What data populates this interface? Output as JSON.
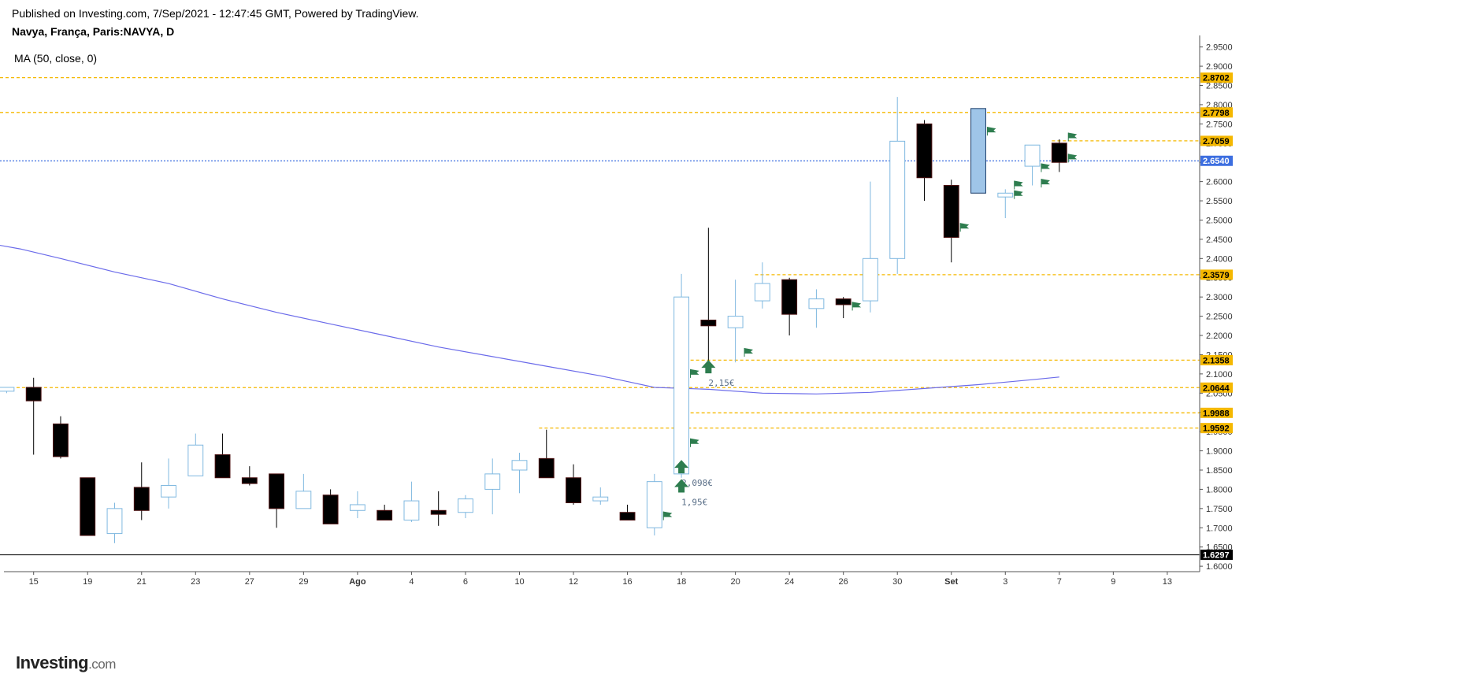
{
  "header": {
    "published": "Published on Investing.com, 7/Sep/2021 - 12:47:45 GMT, Powered by TradingView.",
    "symbol": "Navya, França, Paris:NAVYA, D",
    "indicator": "MA (50, close, 0)"
  },
  "branding": {
    "logo_main": "Investing",
    "logo_suffix": ".com"
  },
  "chart_data": {
    "type": "candlestick",
    "y_axis": {
      "position": "right",
      "range": [
        1.59,
        2.98
      ],
      "ticks": [
        "1.6000",
        "1.6500",
        "1.7000",
        "1.7500",
        "1.8000",
        "1.8500",
        "1.9000",
        "1.9500",
        "2.0000",
        "2.0500",
        "2.1000",
        "2.1500",
        "2.2000",
        "2.2500",
        "2.3000",
        "2.3500",
        "2.4000",
        "2.4500",
        "2.5000",
        "2.5500",
        "2.6000",
        "2.6500",
        "2.7000",
        "2.7500",
        "2.8000",
        "2.8500",
        "2.9000",
        "2.9500"
      ]
    },
    "x_axis": {
      "range": [
        -1.1,
        43.2
      ],
      "labels": [
        {
          "text": "15",
          "x": 0,
          "bold": false
        },
        {
          "text": "19",
          "x": 2,
          "bold": false
        },
        {
          "text": "21",
          "x": 4,
          "bold": false
        },
        {
          "text": "23",
          "x": 6,
          "bold": false
        },
        {
          "text": "27",
          "x": 8,
          "bold": false
        },
        {
          "text": "29",
          "x": 10,
          "bold": false
        },
        {
          "text": "Ago",
          "x": 12,
          "bold": true
        },
        {
          "text": "4",
          "x": 14,
          "bold": false
        },
        {
          "text": "6",
          "x": 16,
          "bold": false
        },
        {
          "text": "10",
          "x": 18,
          "bold": false
        },
        {
          "text": "12",
          "x": 20,
          "bold": false
        },
        {
          "text": "16",
          "x": 22,
          "bold": false
        },
        {
          "text": "18",
          "x": 24,
          "bold": false
        },
        {
          "text": "20",
          "x": 26,
          "bold": false
        },
        {
          "text": "24",
          "x": 28,
          "bold": false
        },
        {
          "text": "26",
          "x": 30,
          "bold": false
        },
        {
          "text": "30",
          "x": 32,
          "bold": false
        },
        {
          "text": "Set",
          "x": 34,
          "bold": true
        },
        {
          "text": "3",
          "x": 36,
          "bold": false
        },
        {
          "text": "7",
          "x": 38,
          "bold": false
        },
        {
          "text": "9",
          "x": 40,
          "bold": false
        },
        {
          "text": "13",
          "x": 42,
          "bold": false
        }
      ]
    },
    "candles": [
      {
        "x": -1,
        "o": 2.055,
        "h": 2.065,
        "l": 2.05,
        "c": 2.065
      },
      {
        "x": 0,
        "o": 2.065,
        "h": 2.09,
        "l": 1.89,
        "c": 2.03
      },
      {
        "x": 1,
        "o": 1.97,
        "h": 1.99,
        "l": 1.88,
        "c": 1.885
      },
      {
        "x": 2,
        "o": 1.83,
        "h": 1.83,
        "l": 1.68,
        "c": 1.68
      },
      {
        "x": 3,
        "o": 1.685,
        "h": 1.765,
        "l": 1.66,
        "c": 1.75
      },
      {
        "x": 4,
        "o": 1.805,
        "h": 1.87,
        "l": 1.72,
        "c": 1.745
      },
      {
        "x": 5,
        "o": 1.78,
        "h": 1.88,
        "l": 1.75,
        "c": 1.81
      },
      {
        "x": 6,
        "o": 1.835,
        "h": 1.945,
        "l": 1.835,
        "c": 1.915
      },
      {
        "x": 7,
        "o": 1.89,
        "h": 1.945,
        "l": 1.83,
        "c": 1.83
      },
      {
        "x": 8,
        "o": 1.83,
        "h": 1.86,
        "l": 1.81,
        "c": 1.815
      },
      {
        "x": 9,
        "o": 1.84,
        "h": 1.84,
        "l": 1.7,
        "c": 1.75
      },
      {
        "x": 10,
        "o": 1.75,
        "h": 1.84,
        "l": 1.75,
        "c": 1.795
      },
      {
        "x": 11,
        "o": 1.785,
        "h": 1.8,
        "l": 1.71,
        "c": 1.71
      },
      {
        "x": 12,
        "o": 1.745,
        "h": 1.795,
        "l": 1.725,
        "c": 1.76
      },
      {
        "x": 13,
        "o": 1.745,
        "h": 1.76,
        "l": 1.72,
        "c": 1.72
      },
      {
        "x": 14,
        "o": 1.72,
        "h": 1.82,
        "l": 1.715,
        "c": 1.77
      },
      {
        "x": 15,
        "o": 1.745,
        "h": 1.795,
        "l": 1.705,
        "c": 1.735
      },
      {
        "x": 16,
        "o": 1.74,
        "h": 1.785,
        "l": 1.725,
        "c": 1.775
      },
      {
        "x": 17,
        "o": 1.8,
        "h": 1.88,
        "l": 1.735,
        "c": 1.84
      },
      {
        "x": 18,
        "o": 1.85,
        "h": 1.895,
        "l": 1.79,
        "c": 1.875
      },
      {
        "x": 19,
        "o": 1.88,
        "h": 1.955,
        "l": 1.83,
        "c": 1.83
      },
      {
        "x": 20,
        "o": 1.83,
        "h": 1.865,
        "l": 1.76,
        "c": 1.765
      },
      {
        "x": 21,
        "o": 1.77,
        "h": 1.805,
        "l": 1.76,
        "c": 1.78
      },
      {
        "x": 22,
        "o": 1.74,
        "h": 1.76,
        "l": 1.72,
        "c": 1.72
      },
      {
        "x": 23,
        "o": 1.7,
        "h": 1.84,
        "l": 1.68,
        "c": 1.82
      },
      {
        "x": 24,
        "o": 1.84,
        "h": 2.36,
        "l": 1.83,
        "c": 2.3
      },
      {
        "x": 25,
        "o": 2.24,
        "h": 2.48,
        "l": 2.13,
        "c": 2.225
      },
      {
        "x": 26,
        "o": 2.22,
        "h": 2.345,
        "l": 2.13,
        "c": 2.25
      },
      {
        "x": 27,
        "o": 2.29,
        "h": 2.39,
        "l": 2.27,
        "c": 2.335
      },
      {
        "x": 28,
        "o": 2.345,
        "h": 2.35,
        "l": 2.2,
        "c": 2.255
      },
      {
        "x": 29,
        "o": 2.27,
        "h": 2.32,
        "l": 2.22,
        "c": 2.295
      },
      {
        "x": 30,
        "o": 2.295,
        "h": 2.3,
        "l": 2.245,
        "c": 2.28
      },
      {
        "x": 31,
        "o": 2.29,
        "h": 2.6,
        "l": 2.26,
        "c": 2.4
      },
      {
        "x": 32,
        "o": 2.4,
        "h": 2.82,
        "l": 2.36,
        "c": 2.705
      },
      {
        "x": 33,
        "o": 2.75,
        "h": 2.76,
        "l": 2.55,
        "c": 2.61
      },
      {
        "x": 34,
        "o": 2.59,
        "h": 2.605,
        "l": 2.39,
        "c": 2.455
      },
      {
        "x": 35,
        "o": 2.57,
        "h": 2.79,
        "l": 2.57,
        "c": 2.79,
        "fill": "#9fc5e8"
      },
      {
        "x": 36,
        "o": 2.56,
        "h": 2.58,
        "l": 2.505,
        "c": 2.57
      },
      {
        "x": 37,
        "o": 2.64,
        "h": 2.695,
        "l": 2.59,
        "c": 2.695
      },
      {
        "x": 38,
        "o": 2.7,
        "h": 2.71,
        "l": 2.625,
        "c": 2.65
      }
    ],
    "ma_series": {
      "name": "MA (50, close, 0)",
      "color": "#6b6bea",
      "points": [
        [
          -1.7,
          2.44
        ],
        [
          -0.5,
          2.425
        ],
        [
          1,
          2.4
        ],
        [
          3,
          2.365
        ],
        [
          5,
          2.335
        ],
        [
          7,
          2.295
        ],
        [
          9,
          2.26
        ],
        [
          11,
          2.23
        ],
        [
          13,
          2.2
        ],
        [
          15,
          2.17
        ],
        [
          17,
          2.145
        ],
        [
          19,
          2.12
        ],
        [
          21,
          2.095
        ],
        [
          22,
          2.08
        ],
        [
          23,
          2.065
        ],
        [
          25,
          2.06
        ],
        [
          27,
          2.05
        ],
        [
          29,
          2.048
        ],
        [
          31,
          2.052
        ],
        [
          33,
          2.062
        ],
        [
          35,
          2.072
        ],
        [
          37,
          2.085
        ],
        [
          38,
          2.092
        ]
      ]
    },
    "horizontal_lines": [
      {
        "value": 2.8702,
        "label": "2.8702",
        "x_start": -2,
        "color": "#f5b800",
        "badge_bg": "#f5b800",
        "badge_fg": "#000000"
      },
      {
        "value": 2.7798,
        "label": "2.7798",
        "x_start": -2,
        "color": "#f5b800",
        "badge_bg": "#f5b800",
        "badge_fg": "#000000"
      },
      {
        "value": 2.7059,
        "label": "2.7059",
        "x_start": 38,
        "color": "#f5b800",
        "badge_bg": "#f5b800",
        "badge_fg": "#000000"
      },
      {
        "value": 2.654,
        "label": "2.6540",
        "x_start": -2,
        "color": "#3c6ee0",
        "badge_bg": "#3c6ee0",
        "badge_fg": "#ffffff"
      },
      {
        "value": 2.3579,
        "label": "2.3579",
        "x_start": 27,
        "color": "#f5b800",
        "badge_bg": "#f5b800",
        "badge_fg": "#000000"
      },
      {
        "value": 2.1358,
        "label": "2.1358",
        "x_start": 24,
        "color": "#f5b800",
        "badge_bg": "#f5b800",
        "badge_fg": "#000000"
      },
      {
        "value": 2.0644,
        "label": "2.0644",
        "x_start": -2,
        "color": "#f5b800",
        "badge_bg": "#f5b800",
        "badge_fg": "#000000"
      },
      {
        "value": 1.9988,
        "label": "1.9988",
        "x_start": 24,
        "color": "#f5b800",
        "badge_bg": "#f5b800",
        "badge_fg": "#000000"
      },
      {
        "value": 1.9592,
        "label": "1.9592",
        "x_start": 19,
        "color": "#f5b800",
        "badge_bg": "#f5b800",
        "badge_fg": "#000000"
      }
    ],
    "baseline": {
      "value": 1.6297,
      "label": "1.6297",
      "color": "#000000",
      "badge_bg": "#000000",
      "badge_fg": "#ffffff"
    },
    "annotations": [
      {
        "text": "2,15€",
        "x": 25,
        "y": 2.12,
        "arrow": "up"
      },
      {
        "text": "2,098€",
        "x": 24,
        "y": 1.86,
        "arrow": "up"
      },
      {
        "text": "1,95€",
        "x": 24,
        "y": 1.81,
        "arrow": "up"
      }
    ],
    "flags": [
      {
        "x": 23,
        "y": 1.73
      },
      {
        "x": 24,
        "y": 2.1
      },
      {
        "x": 24,
        "y": 1.92
      },
      {
        "x": 26,
        "y": 2.155
      },
      {
        "x": 30,
        "y": 2.275
      },
      {
        "x": 34,
        "y": 2.48
      },
      {
        "x": 35,
        "y": 2.73
      },
      {
        "x": 36,
        "y": 2.59
      },
      {
        "x": 36,
        "y": 2.565
      },
      {
        "x": 37,
        "y": 2.635
      },
      {
        "x": 37,
        "y": 2.595
      },
      {
        "x": 38,
        "y": 2.715
      },
      {
        "x": 38,
        "y": 2.66
      }
    ],
    "grid": false,
    "legend": "none"
  }
}
